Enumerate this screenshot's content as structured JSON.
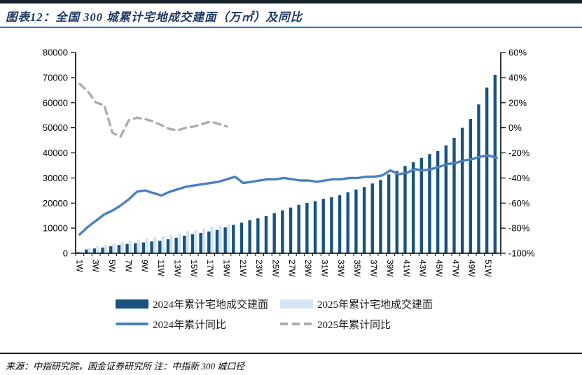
{
  "page": {
    "title": "图表12：全国 300 城累计宅地成交建面（万㎡）及同比",
    "source_note": "来源：中指研究院，国金证券研究所  注：中指新 300 城口径"
  },
  "colors": {
    "bar_2024": "#17537e",
    "bar_2025": "#d4e4f2",
    "line_2024": "#4a80be",
    "line_2025": "#adadad",
    "axis": "#000000",
    "title_text": "#1f3864",
    "title_underline": "#3778b4"
  },
  "legend": {
    "bar_2024_label": "2024年累计宅地成交建面",
    "bar_2025_label": "2025年累计宅地成交建面",
    "line_2024_label": "2024年累计同比",
    "line_2025_label": "2025年累计同比"
  },
  "chart_data": {
    "type": "bar+line combo (dual axis)",
    "title": "全国 300 城累计宅地成交建面（万㎡）及同比",
    "weeks_total": 52,
    "x_tick_labels": [
      "1W",
      "3W",
      "5W",
      "7W",
      "9W",
      "11W",
      "13W",
      "15W",
      "17W",
      "19W",
      "21W",
      "23W",
      "25W",
      "27W",
      "29W",
      "31W",
      "33W",
      "35W",
      "37W",
      "39W",
      "41W",
      "43W",
      "45W",
      "47W",
      "49W",
      "51W"
    ],
    "left_axis": {
      "min": 0,
      "max": 80000,
      "step": 10000
    },
    "right_axis": {
      "min": -100,
      "max": 60,
      "step": 20,
      "format": "percent"
    },
    "grid": false,
    "legend_position": "bottom",
    "series": [
      {
        "name": "2024年累计宅地成交建面",
        "type": "bar",
        "axis": "left",
        "color": "#17537e",
        "values": [
          400,
          1500,
          1900,
          2300,
          2800,
          3300,
          3700,
          4000,
          4300,
          4700,
          5000,
          5600,
          6200,
          7000,
          7600,
          8100,
          8700,
          9300,
          10300,
          11300,
          12200,
          13200,
          13900,
          14800,
          16000,
          17100,
          18200,
          19300,
          20100,
          20800,
          21700,
          22300,
          23100,
          24300,
          25400,
          26400,
          27800,
          29200,
          31400,
          32800,
          34800,
          36300,
          38000,
          39500,
          40700,
          43000,
          46000,
          50000,
          53500,
          59300,
          66000,
          71100
        ]
      },
      {
        "name": "2025年累计宅地成交建面",
        "type": "bar",
        "axis": "left",
        "color": "#d4e4f2",
        "values": [
          800,
          2100,
          2800,
          3300,
          3900,
          4500,
          5000,
          5400,
          5900,
          6400,
          6900,
          7300,
          7800,
          8900,
          9400,
          9900,
          10600,
          11000,
          11400
        ]
      },
      {
        "name": "2024年累计同比",
        "type": "line",
        "style": "solid",
        "axis": "right",
        "color": "#4a80be",
        "values": [
          -85,
          -79,
          -74,
          -69,
          -66,
          -62,
          -57,
          -51,
          -50,
          -52,
          -54,
          -51,
          -49,
          -47,
          -46,
          -45,
          -44,
          -43,
          -41,
          -39,
          -44,
          -43,
          -42,
          -41,
          -41,
          -40,
          -41,
          -42,
          -42,
          -43,
          -42,
          -41,
          -41,
          -40,
          -40,
          -39,
          -39,
          -38,
          -34,
          -37,
          -36,
          -33,
          -34,
          -33,
          -31,
          -29,
          -28,
          -26,
          -25,
          -23,
          -22,
          -24
        ]
      },
      {
        "name": "2025年累计同比",
        "type": "line",
        "style": "dashed",
        "axis": "right",
        "color": "#adadad",
        "values": [
          35,
          29,
          20,
          18,
          -4,
          -7,
          6,
          8,
          7,
          5,
          2,
          -1,
          -2,
          0,
          1,
          3,
          5,
          3,
          1
        ]
      }
    ]
  }
}
